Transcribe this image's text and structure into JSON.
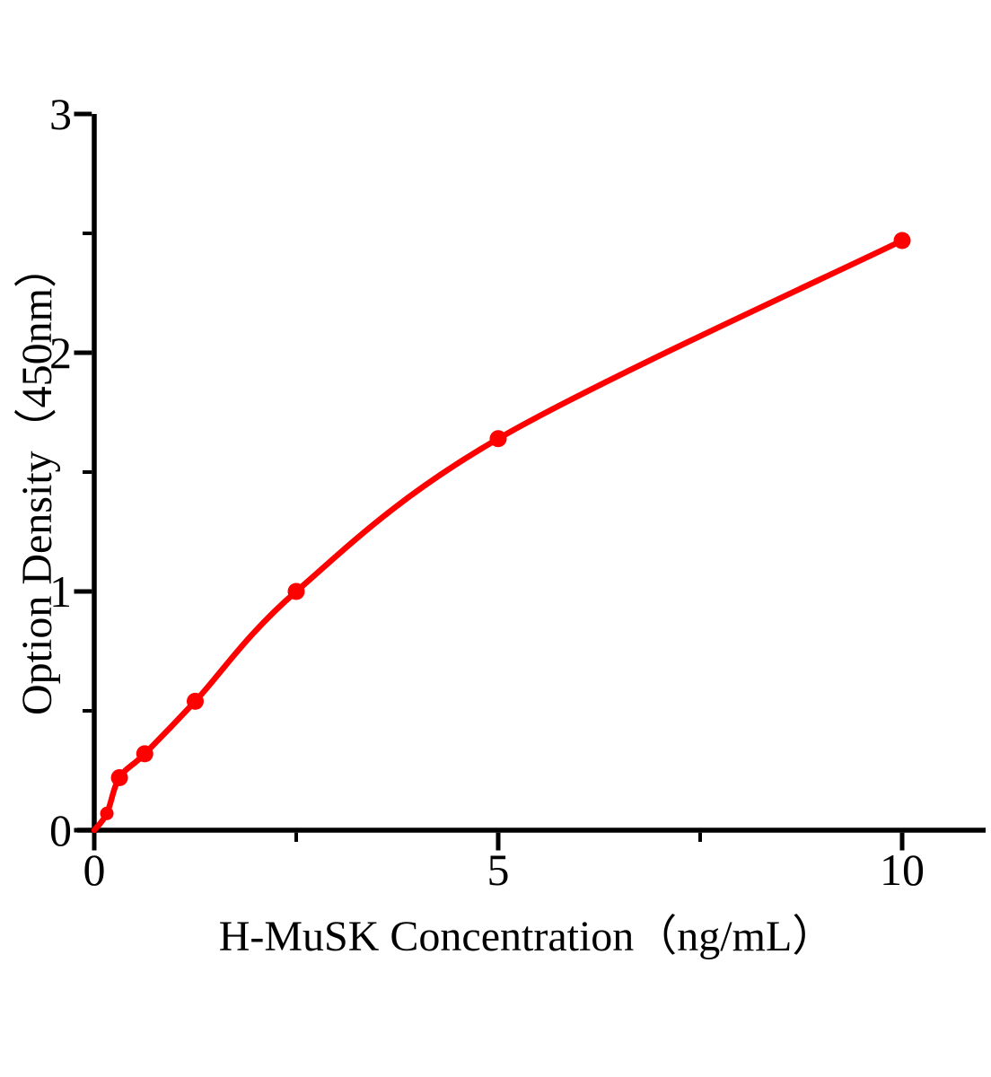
{
  "chart_data": {
    "type": "scatter",
    "title": "",
    "xlabel": "H-MuSK Concentration（ng/mL）",
    "ylabel": "Option Density（450nm）",
    "x": [
      0.156,
      0.312,
      0.625,
      1.25,
      2.5,
      5,
      10
    ],
    "y": [
      0.07,
      0.22,
      0.32,
      0.54,
      1.0,
      1.64,
      2.47
    ],
    "curve_start": {
      "x": 0,
      "y": 0
    },
    "xlim": [
      0,
      11
    ],
    "ylim": [
      0,
      3
    ],
    "x_major_ticks": [
      0,
      5,
      10
    ],
    "x_tick_labels": [
      "0",
      "5",
      "10"
    ],
    "x_minor_ticks": [
      2.5,
      7.5
    ],
    "y_major_ticks": [
      0,
      1,
      2,
      3
    ],
    "y_tick_labels": [
      "0",
      "1",
      "2",
      "3"
    ],
    "y_minor_ticks": [
      0.5,
      1.5,
      2.5
    ],
    "grid": false,
    "legend": null,
    "colors": {
      "curve": "#ff0000",
      "marker": "#ff0000",
      "axis": "#000000",
      "text": "#000000",
      "background": "#ffffff"
    }
  }
}
